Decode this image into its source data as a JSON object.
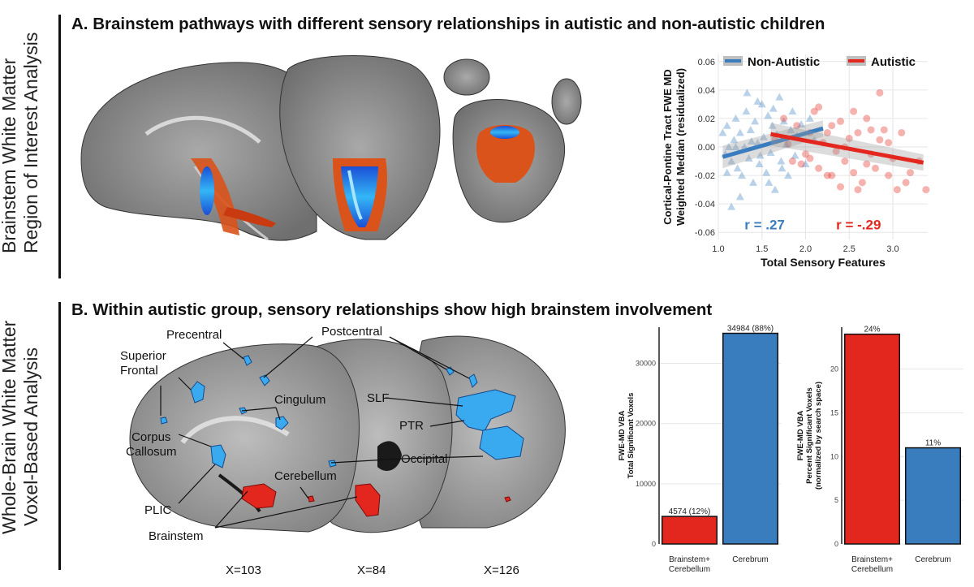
{
  "side_labels": {
    "a": [
      "Brainstem White Matter",
      "Region of Interest Analysis"
    ],
    "b": [
      "Whole-Brain White Matter",
      "Voxel-Based Analysis"
    ]
  },
  "section_titles": {
    "a": "A. Brainstem pathways with different sensory relationships in autistic and non-autistic children",
    "b": "B. Within autistic group, sensory relationships show high brainstem involvement"
  },
  "brain_labels": {
    "precentral": "Precentral",
    "postcentral": "Postcentral",
    "superior": "Superior",
    "frontal": "Frontal",
    "cingulum": "Cingulum",
    "corpus": "Corpus",
    "callosum": "Callosum",
    "slf": "SLF",
    "ptr": "PTR",
    "occipital": "Occipital",
    "cerebellum": "Cerebellum",
    "plic": "PLIC",
    "brainstem": "Brainstem"
  },
  "slice_labels": [
    "X=103",
    "X=84",
    "X=126"
  ],
  "colors": {
    "non_autistic": "#3a7dbf",
    "autistic": "#e3261e",
    "bar_red": "#e3261e",
    "bar_blue": "#3a7dbf",
    "brain_blue": "#3aaaf0"
  },
  "chart_data": [
    {
      "type": "scatter",
      "xlabel": "Total Sensory Features",
      "ylabel": [
        "Cortical-Pontine Tract FWE MD",
        "Weighted Median (residualized)"
      ],
      "xlim": [
        1.0,
        3.4
      ],
      "ylim": [
        -0.065,
        0.065
      ],
      "xticks": [
        "1.0",
        "1.5",
        "2.0",
        "2.5",
        "3.0"
      ],
      "yticks": [
        "0.06",
        "0.04",
        "0.02",
        "0.00",
        "-0.02",
        "-0.04",
        "-0.06"
      ],
      "legend": [
        {
          "name": "Non-Autistic",
          "color": "#3a7dbf"
        },
        {
          "name": "Autistic",
          "color": "#e3261e"
        }
      ],
      "legend_position": "top",
      "grid": true,
      "annotations": [
        {
          "text": "r = .27",
          "color": "#3a7dbf"
        },
        {
          "text": "r = -.29",
          "color": "#e3261e"
        }
      ],
      "series": [
        {
          "name": "Non-Autistic",
          "marker": "triangle",
          "fit": [
            [
              1.05,
              -0.007
            ],
            [
              2.2,
              0.013
            ]
          ],
          "points": [
            [
              1.05,
              0.01
            ],
            [
              1.08,
              -0.005
            ],
            [
              1.1,
              0.015
            ],
            [
              1.12,
              0.0
            ],
            [
              1.15,
              -0.01
            ],
            [
              1.18,
              0.005
            ],
            [
              1.2,
              0.02
            ],
            [
              1.22,
              -0.015
            ],
            [
              1.25,
              0.01
            ],
            [
              1.27,
              -0.02
            ],
            [
              1.3,
              0.0
            ],
            [
              1.32,
              0.025
            ],
            [
              1.35,
              -0.008
            ],
            [
              1.37,
              0.012
            ],
            [
              1.4,
              -0.025
            ],
            [
              1.42,
              0.018
            ],
            [
              1.45,
              0.003
            ],
            [
              1.47,
              -0.012
            ],
            [
              1.5,
              0.03
            ],
            [
              1.52,
              0.007
            ],
            [
              1.55,
              -0.018
            ],
            [
              1.57,
              0.022
            ],
            [
              1.6,
              -0.004
            ],
            [
              1.62,
              0.015
            ],
            [
              1.65,
              -0.03
            ],
            [
              1.67,
              0.009
            ],
            [
              1.7,
              0.035
            ],
            [
              1.72,
              -0.01
            ],
            [
              1.75,
              0.018
            ],
            [
              1.78,
              0.002
            ],
            [
              1.8,
              -0.02
            ],
            [
              1.83,
              0.012
            ],
            [
              1.85,
              0.025
            ],
            [
              1.88,
              -0.006
            ],
            [
              1.9,
              0.008
            ],
            [
              1.95,
              0.016
            ],
            [
              2.0,
              -0.012
            ],
            [
              2.05,
              0.02
            ],
            [
              2.1,
              0.005
            ],
            [
              1.25,
              -0.035
            ],
            [
              1.15,
              -0.042
            ],
            [
              1.45,
              0.032
            ],
            [
              1.33,
              0.038
            ],
            [
              1.58,
              -0.025
            ],
            [
              1.1,
              -0.018
            ],
            [
              1.2,
              0.0
            ],
            [
              1.38,
              0.004
            ],
            [
              1.48,
              -0.006
            ],
            [
              1.63,
              0.027
            ],
            [
              1.73,
              -0.015
            ]
          ]
        },
        {
          "name": "Autistic",
          "marker": "circle",
          "fit": [
            [
              1.6,
              0.009
            ],
            [
              3.35,
              -0.011
            ]
          ],
          "points": [
            [
              1.65,
              0.005
            ],
            [
              1.75,
              0.02
            ],
            [
              1.85,
              -0.01
            ],
            [
              1.9,
              0.015
            ],
            [
              2.0,
              -0.005
            ],
            [
              2.05,
              0.01
            ],
            [
              2.1,
              0.025
            ],
            [
              2.15,
              -0.015
            ],
            [
              2.2,
              0.003
            ],
            [
              2.25,
              -0.02
            ],
            [
              2.3,
              0.015
            ],
            [
              2.35,
              -0.003
            ],
            [
              2.4,
              0.018
            ],
            [
              2.45,
              -0.01
            ],
            [
              2.5,
              0.006
            ],
            [
              2.55,
              -0.018
            ],
            [
              2.6,
              0.01
            ],
            [
              2.65,
              -0.025
            ],
            [
              2.7,
              0.02
            ],
            [
              2.75,
              -0.005
            ],
            [
              2.8,
              -0.015
            ],
            [
              2.85,
              0.005
            ],
            [
              2.9,
              0.012
            ],
            [
              2.95,
              -0.02
            ],
            [
              3.0,
              -0.008
            ],
            [
              3.05,
              -0.03
            ],
            [
              3.1,
              0.01
            ],
            [
              3.2,
              -0.018
            ],
            [
              3.3,
              -0.01
            ],
            [
              3.38,
              -0.03
            ],
            [
              2.85,
              0.038
            ],
            [
              2.55,
              0.025
            ],
            [
              2.3,
              -0.02
            ],
            [
              2.15,
              0.028
            ],
            [
              1.95,
              -0.012
            ],
            [
              2.45,
              0.0
            ],
            [
              2.6,
              -0.03
            ],
            [
              2.75,
              0.012
            ],
            [
              2.95,
              0.003
            ],
            [
              3.15,
              -0.025
            ],
            [
              2.25,
              0.01
            ],
            [
              2.05,
              -0.008
            ],
            [
              1.8,
              0.002
            ],
            [
              2.4,
              -0.028
            ],
            [
              2.7,
              -0.012
            ]
          ]
        }
      ]
    },
    {
      "type": "bar",
      "ylabel": [
        "FWE-MD VBA",
        "Total Significant Voxels"
      ],
      "categories": [
        [
          "Brainstem+",
          "Cerebellum"
        ],
        [
          "Cerebrum"
        ]
      ],
      "values": [
        4574,
        34984
      ],
      "data_labels": [
        "4574  (12%)",
        "34984  (88%)"
      ],
      "colors": [
        "#e3261e",
        "#3a7dbf"
      ],
      "ylim": [
        0,
        36000
      ],
      "yticks": [
        0,
        10000,
        20000,
        30000
      ],
      "grid": true
    },
    {
      "type": "bar",
      "ylabel": [
        "FWE-MD VBA",
        "Percent Significant Voxels",
        "(normalized by search space)"
      ],
      "categories": [
        [
          "Brainstem+",
          "Cerebellum"
        ],
        [
          "Cerebrum"
        ]
      ],
      "values": [
        24,
        11
      ],
      "data_labels": [
        "24%",
        "11%"
      ],
      "colors": [
        "#e3261e",
        "#3a7dbf"
      ],
      "ylim": [
        0,
        24.8
      ],
      "yticks": [
        0,
        5,
        10,
        15,
        20
      ],
      "grid": true
    }
  ]
}
